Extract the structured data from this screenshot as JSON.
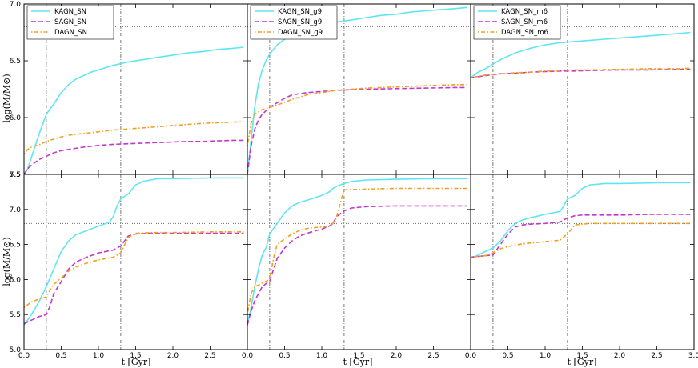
{
  "colors": {
    "KAGN": "#5ee6f0",
    "SAGN": "#c238c8",
    "DAGN": "#f0a020",
    "ref": "#555555"
  },
  "axes": {
    "xlabel": "t [Gyr]",
    "ylabel": "log(M/M⊙)",
    "x_ticks": [
      "0.0",
      "0.5",
      "1.0",
      "1.5",
      "2.0",
      "2.5"
    ],
    "x_ticks_last": [
      "0.0",
      "0.5",
      "1.0",
      "1.5",
      "2.0",
      "2.5",
      "3.0"
    ],
    "top_y_ticks": [
      "7.0",
      "6.5",
      "6.0",
      "5.5"
    ],
    "bottom_y_ticks": [
      "7.5",
      "7.0",
      "6.5",
      "6.0",
      "5.5",
      "5.0"
    ],
    "vlines": [
      0.3,
      1.3
    ],
    "hline": 6.8
  },
  "chart_data": [
    {
      "type": "line",
      "panel": "top-left",
      "xlim": [
        0,
        3
      ],
      "ylim": [
        5.5,
        7.0
      ],
      "legend_loc": "top-left",
      "series": [
        {
          "name": "KAGN_SN",
          "x": [
            0,
            0.05,
            0.1,
            0.2,
            0.3,
            0.4,
            0.5,
            0.6,
            0.7,
            0.8,
            0.9,
            1.0,
            1.1,
            1.2,
            1.4,
            1.6,
            1.8,
            2.0,
            2.2,
            2.4,
            2.6,
            2.8,
            2.95
          ],
          "y": [
            5.5,
            5.55,
            5.65,
            5.85,
            6.03,
            6.12,
            6.22,
            6.29,
            6.34,
            6.37,
            6.4,
            6.42,
            6.44,
            6.46,
            6.49,
            6.51,
            6.53,
            6.55,
            6.57,
            6.58,
            6.6,
            6.61,
            6.62
          ]
        },
        {
          "name": "SAGN_SN",
          "x": [
            0,
            0.05,
            0.1,
            0.2,
            0.3,
            0.4,
            0.5,
            0.6,
            0.8,
            1.0,
            1.2,
            1.4,
            1.6,
            1.8,
            2.0,
            2.2,
            2.4,
            2.6,
            2.8,
            2.95
          ],
          "y": [
            5.5,
            5.55,
            5.58,
            5.63,
            5.66,
            5.69,
            5.71,
            5.72,
            5.74,
            5.755,
            5.765,
            5.77,
            5.775,
            5.78,
            5.785,
            5.79,
            5.79,
            5.795,
            5.8,
            5.8
          ]
        },
        {
          "name": "DAGN_SN",
          "x": [
            0,
            0.05,
            0.1,
            0.2,
            0.3,
            0.4,
            0.5,
            0.6,
            0.8,
            1.0,
            1.2,
            1.4,
            1.6,
            1.8,
            2.0,
            2.2,
            2.4,
            2.6,
            2.8,
            2.95
          ],
          "y": [
            5.68,
            5.72,
            5.74,
            5.76,
            5.79,
            5.81,
            5.83,
            5.845,
            5.86,
            5.875,
            5.89,
            5.9,
            5.91,
            5.92,
            5.93,
            5.94,
            5.95,
            5.955,
            5.96,
            5.965
          ]
        }
      ]
    },
    {
      "type": "line",
      "panel": "top-middle",
      "xlim": [
        0,
        3
      ],
      "ylim": [
        5.5,
        7.0
      ],
      "legend_loc": "top-left",
      "series": [
        {
          "name": "KAGN_SN_g9",
          "x": [
            0,
            0.05,
            0.1,
            0.15,
            0.2,
            0.25,
            0.3,
            0.4,
            0.5,
            0.6,
            0.8,
            1.0,
            1.2,
            1.4,
            1.6,
            1.8,
            2.0,
            2.2,
            2.4,
            2.6,
            2.8,
            2.95
          ],
          "y": [
            5.5,
            5.8,
            6.1,
            6.3,
            6.42,
            6.5,
            6.56,
            6.64,
            6.69,
            6.72,
            6.77,
            6.81,
            6.84,
            6.86,
            6.88,
            6.9,
            6.91,
            6.93,
            6.94,
            6.95,
            6.96,
            6.97
          ]
        },
        {
          "name": "SAGN_SN_g9",
          "x": [
            0,
            0.05,
            0.1,
            0.15,
            0.2,
            0.3,
            0.4,
            0.5,
            0.6,
            0.8,
            1.0,
            1.2,
            1.4,
            1.6,
            2.0,
            2.4,
            2.8,
            2.95
          ],
          "y": [
            5.5,
            5.75,
            5.9,
            5.98,
            6.03,
            6.09,
            6.13,
            6.17,
            6.2,
            6.22,
            6.23,
            6.24,
            6.245,
            6.25,
            6.255,
            6.26,
            6.265,
            6.265
          ]
        },
        {
          "name": "DAGN_SN_g9",
          "x": [
            0,
            0.05,
            0.1,
            0.2,
            0.3,
            0.4,
            0.6,
            0.8,
            1.0,
            1.2,
            1.4,
            1.6,
            2.0,
            2.4,
            2.8,
            2.95
          ],
          "y": [
            5.75,
            5.95,
            6.03,
            6.07,
            6.09,
            6.11,
            6.16,
            6.2,
            6.22,
            6.24,
            6.25,
            6.26,
            6.27,
            6.28,
            6.29,
            6.29
          ]
        }
      ]
    },
    {
      "type": "line",
      "panel": "top-right",
      "xlim": [
        0,
        3
      ],
      "ylim": [
        5.5,
        7.0
      ],
      "legend_loc": "top-left",
      "series": [
        {
          "name": "KAGN_SN_m6",
          "x": [
            0,
            0.1,
            0.2,
            0.3,
            0.4,
            0.5,
            0.6,
            0.8,
            1.0,
            1.2,
            1.4,
            1.6,
            1.8,
            2.0,
            2.2,
            2.4,
            2.6,
            2.8,
            2.95
          ],
          "y": [
            6.35,
            6.4,
            6.43,
            6.47,
            6.51,
            6.54,
            6.57,
            6.61,
            6.64,
            6.66,
            6.67,
            6.68,
            6.69,
            6.7,
            6.71,
            6.72,
            6.73,
            6.74,
            6.75
          ]
        },
        {
          "name": "SAGN_SN_m6",
          "x": [
            0,
            0.2,
            0.4,
            0.6,
            0.8,
            1.0,
            1.2,
            1.4,
            1.6,
            2.0,
            2.4,
            2.8,
            2.95
          ],
          "y": [
            6.35,
            6.37,
            6.385,
            6.39,
            6.4,
            6.405,
            6.41,
            6.41,
            6.415,
            6.42,
            6.42,
            6.425,
            6.425
          ]
        },
        {
          "name": "DAGN_SN_m6",
          "x": [
            0,
            0.2,
            0.4,
            0.6,
            0.8,
            1.0,
            1.2,
            1.4,
            1.6,
            2.0,
            2.4,
            2.8,
            2.95
          ],
          "y": [
            6.35,
            6.375,
            6.385,
            6.395,
            6.4,
            6.41,
            6.415,
            6.42,
            6.42,
            6.425,
            6.43,
            6.43,
            6.435
          ]
        }
      ]
    },
    {
      "type": "line",
      "panel": "bottom-left",
      "xlim": [
        0,
        3
      ],
      "ylim": [
        5.0,
        7.5
      ],
      "series": [
        {
          "name": "KAGN_SN",
          "x": [
            0,
            0.1,
            0.2,
            0.3,
            0.4,
            0.5,
            0.6,
            0.7,
            0.8,
            1.0,
            1.15,
            1.2,
            1.25,
            1.3,
            1.4,
            1.5,
            1.6,
            1.7,
            1.8,
            2.0,
            2.5,
            2.95
          ],
          "y": [
            5.35,
            5.5,
            5.68,
            5.9,
            6.15,
            6.4,
            6.55,
            6.64,
            6.68,
            6.76,
            6.82,
            6.9,
            7.05,
            7.15,
            7.22,
            7.35,
            7.4,
            7.42,
            7.44,
            7.44,
            7.45,
            7.45
          ]
        },
        {
          "name": "SAGN_SN",
          "x": [
            0,
            0.1,
            0.2,
            0.3,
            0.35,
            0.4,
            0.5,
            0.6,
            0.7,
            0.8,
            1.0,
            1.2,
            1.3,
            1.4,
            1.5,
            1.7,
            2.0,
            2.5,
            2.95
          ],
          "y": [
            5.37,
            5.42,
            5.47,
            5.5,
            5.62,
            5.8,
            5.97,
            6.15,
            6.25,
            6.3,
            6.38,
            6.42,
            6.48,
            6.62,
            6.65,
            6.66,
            6.66,
            6.66,
            6.66
          ]
        },
        {
          "name": "DAGN_SN",
          "x": [
            0,
            0.1,
            0.2,
            0.3,
            0.35,
            0.4,
            0.5,
            0.6,
            0.7,
            0.8,
            1.0,
            1.2,
            1.3,
            1.4,
            1.5,
            1.7,
            2.0,
            2.5,
            2.95
          ],
          "y": [
            5.6,
            5.68,
            5.72,
            5.75,
            5.85,
            5.93,
            6.02,
            6.12,
            6.18,
            6.22,
            6.28,
            6.32,
            6.38,
            6.6,
            6.66,
            6.67,
            6.67,
            6.68,
            6.68
          ]
        }
      ]
    },
    {
      "type": "line",
      "panel": "bottom-middle",
      "xlim": [
        0,
        3
      ],
      "ylim": [
        5.0,
        7.5
      ],
      "series": [
        {
          "name": "KAGN_SN_g9",
          "x": [
            0,
            0.05,
            0.1,
            0.15,
            0.2,
            0.25,
            0.3,
            0.4,
            0.5,
            0.6,
            0.7,
            0.8,
            1.0,
            1.1,
            1.15,
            1.2,
            1.3,
            1.4,
            1.6,
            2.0,
            2.5,
            2.95
          ],
          "y": [
            5.35,
            5.6,
            5.9,
            6.15,
            6.35,
            6.45,
            6.65,
            6.8,
            6.95,
            7.05,
            7.1,
            7.13,
            7.2,
            7.25,
            7.3,
            7.33,
            7.37,
            7.4,
            7.42,
            7.43,
            7.44,
            7.44
          ]
        },
        {
          "name": "SAGN_SN_g9",
          "x": [
            0,
            0.05,
            0.1,
            0.2,
            0.3,
            0.4,
            0.5,
            0.6,
            0.7,
            0.8,
            1.0,
            1.1,
            1.15,
            1.2,
            1.3,
            1.4,
            1.6,
            2.0,
            2.5,
            2.95
          ],
          "y": [
            5.35,
            5.55,
            5.7,
            5.9,
            5.98,
            6.3,
            6.45,
            6.55,
            6.62,
            6.66,
            6.72,
            6.76,
            6.8,
            6.9,
            6.98,
            7.02,
            7.04,
            7.05,
            7.05,
            7.05
          ]
        },
        {
          "name": "DAGN_SN_g9",
          "x": [
            0,
            0.05,
            0.1,
            0.15,
            0.2,
            0.3,
            0.35,
            0.4,
            0.5,
            0.6,
            0.7,
            0.8,
            1.0,
            1.1,
            1.15,
            1.2,
            1.25,
            1.3,
            1.6,
            2.0,
            2.5,
            2.95
          ],
          "y": [
            5.5,
            5.8,
            5.9,
            5.92,
            5.95,
            6.0,
            6.3,
            6.5,
            6.58,
            6.65,
            6.7,
            6.73,
            6.75,
            6.76,
            6.8,
            6.9,
            7.1,
            7.28,
            7.29,
            7.3,
            7.3,
            7.3
          ]
        }
      ]
    },
    {
      "type": "line",
      "panel": "bottom-right",
      "xlim": [
        0,
        3
      ],
      "ylim": [
        5.0,
        7.5
      ],
      "series": [
        {
          "name": "KAGN_SN_m6",
          "x": [
            0,
            0.1,
            0.2,
            0.3,
            0.4,
            0.5,
            0.6,
            0.7,
            0.8,
            1.0,
            1.2,
            1.25,
            1.3,
            1.4,
            1.5,
            1.6,
            1.8,
            2.0,
            2.5,
            2.95
          ],
          "y": [
            6.3,
            6.35,
            6.4,
            6.45,
            6.55,
            6.7,
            6.8,
            6.85,
            6.88,
            6.93,
            6.97,
            7.05,
            7.15,
            7.2,
            7.3,
            7.35,
            7.37,
            7.37,
            7.38,
            7.38
          ]
        },
        {
          "name": "SAGN_SN_m6",
          "x": [
            0,
            0.1,
            0.2,
            0.3,
            0.4,
            0.5,
            0.6,
            0.7,
            0.8,
            1.0,
            1.2,
            1.3,
            1.4,
            1.5,
            1.6,
            2.0,
            2.5,
            2.95
          ],
          "y": [
            6.32,
            6.33,
            6.34,
            6.35,
            6.5,
            6.65,
            6.75,
            6.78,
            6.79,
            6.8,
            6.82,
            6.88,
            6.91,
            6.92,
            6.92,
            6.92,
            6.93,
            6.93
          ]
        },
        {
          "name": "DAGN_SN_m6",
          "x": [
            0,
            0.1,
            0.2,
            0.3,
            0.4,
            0.5,
            0.6,
            0.7,
            0.8,
            1.0,
            1.2,
            1.3,
            1.4,
            1.6,
            2.0,
            2.5,
            2.95
          ],
          "y": [
            6.32,
            6.33,
            6.34,
            6.38,
            6.44,
            6.47,
            6.49,
            6.51,
            6.52,
            6.54,
            6.56,
            6.65,
            6.78,
            6.8,
            6.8,
            6.8,
            6.8
          ]
        }
      ]
    }
  ]
}
